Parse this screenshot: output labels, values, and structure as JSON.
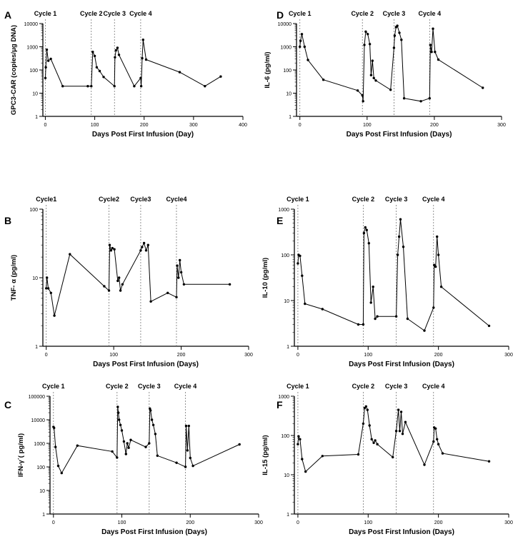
{
  "chart_data": [
    {
      "type": "line",
      "panel_letter": "A",
      "ylabel": "GPC3-CAR (copies/μg DNA)",
      "xlabel": "Days Post First Infusion (Day)",
      "yticks": [
        {
          "v": 1,
          "label": "1"
        },
        {
          "v": 10,
          "label": "10"
        },
        {
          "v": 100,
          "label": "100"
        },
        {
          "v": 1000,
          "label": "1000"
        },
        {
          "v": 10000,
          "label": "10000"
        }
      ],
      "xticks": [
        {
          "v": 0,
          "label": "0"
        },
        {
          "v": 100,
          "label": "100"
        },
        {
          "v": 200,
          "label": "200"
        },
        {
          "v": 300,
          "label": "300"
        },
        {
          "v": 400,
          "label": "400"
        }
      ],
      "ylim": [
        1,
        10000
      ],
      "xlim": [
        -5,
        400
      ],
      "cycles": [
        {
          "label": "Cycle 1",
          "day": 0
        },
        {
          "label": "Cycle 2",
          "day": 93
        },
        {
          "label": "Cycle 3",
          "day": 140
        },
        {
          "label": "Cycle 4",
          "day": 193
        }
      ],
      "x": [
        0,
        1,
        3,
        6,
        11,
        35,
        86,
        93,
        96,
        100,
        104,
        110,
        118,
        140,
        141,
        143,
        146,
        149,
        180,
        193,
        194,
        196,
        198,
        204,
        272,
        323,
        355
      ],
      "y": [
        45,
        130,
        750,
        250,
        300,
        20,
        20,
        20,
        600,
        400,
        130,
        90,
        50,
        20,
        350,
        700,
        900,
        450,
        20,
        45,
        20,
        320,
        2000,
        280,
        80,
        20,
        52
      ]
    },
    {
      "type": "line",
      "panel_letter": "B",
      "ylabel": "TNF- α (pg/ml)",
      "xlabel": "Days Post First Infusion (Days)",
      "yticks": [
        {
          "v": 1,
          "label": "1"
        },
        {
          "v": 10,
          "label": "10"
        },
        {
          "v": 100,
          "label": "100"
        }
      ],
      "xticks": [
        {
          "v": 0,
          "label": "0"
        },
        {
          "v": 100,
          "label": "100"
        },
        {
          "v": 200,
          "label": "200"
        },
        {
          "v": 300,
          "label": "300"
        }
      ],
      "ylim": [
        1,
        100
      ],
      "xlim": [
        -5,
        300
      ],
      "cycles": [
        {
          "label": "Cycle1",
          "day": 0
        },
        {
          "label": "Cycle2",
          "day": 93
        },
        {
          "label": "Cycle3",
          "day": 140
        },
        {
          "label": "Cycle4",
          "day": 193
        }
      ],
      "x": [
        0,
        1,
        3,
        7,
        12,
        35,
        86,
        93,
        94,
        96,
        98,
        101,
        106,
        108,
        110,
        113,
        140,
        142,
        145,
        148,
        151,
        155,
        180,
        193,
        194,
        196,
        198,
        200,
        204,
        272
      ],
      "y": [
        7,
        10,
        7,
        6,
        2.8,
        22,
        7.5,
        6.5,
        30,
        25,
        27,
        26,
        9,
        10,
        6.5,
        8,
        25,
        28,
        32,
        25,
        30,
        4.5,
        6,
        5.2,
        15,
        10,
        18,
        12,
        8,
        8
      ]
    },
    {
      "type": "line",
      "panel_letter": "C",
      "ylabel": "IFN-γ´( pg/ml)",
      "xlabel": "Days Post First Infusion (Days)",
      "yticks": [
        {
          "v": 1,
          "label": "1"
        },
        {
          "v": 10,
          "label": "10"
        },
        {
          "v": 100,
          "label": "100"
        },
        {
          "v": 1000,
          "label": "1000"
        },
        {
          "v": 10000,
          "label": "10000"
        },
        {
          "v": 100000,
          "label": "100000"
        }
      ],
      "xticks": [
        {
          "v": 0,
          "label": "0"
        },
        {
          "v": 100,
          "label": "100"
        },
        {
          "v": 200,
          "label": "200"
        },
        {
          "v": 300,
          "label": "300"
        }
      ],
      "ylim": [
        1,
        100000
      ],
      "xlim": [
        -5,
        300
      ],
      "cycles": [
        {
          "label": "Cycle 1",
          "day": 0
        },
        {
          "label": "Cycle 2",
          "day": 93
        },
        {
          "label": "Cycle 3",
          "day": 140
        },
        {
          "label": "Cycle 4",
          "day": 193
        }
      ],
      "x": [
        0,
        1,
        3,
        7,
        12,
        35,
        86,
        93,
        94,
        95,
        96,
        98,
        100,
        103,
        106,
        108,
        110,
        113,
        135,
        140,
        141,
        142,
        144,
        146,
        149,
        152,
        180,
        193,
        194,
        196,
        198,
        200,
        204,
        272
      ],
      "y": [
        5000,
        4500,
        700,
        110,
        55,
        800,
        450,
        250,
        35000,
        20000,
        10000,
        6000,
        3500,
        1200,
        350,
        1000,
        650,
        1400,
        700,
        1000,
        30000,
        25000,
        10000,
        6000,
        2500,
        300,
        150,
        100,
        5500,
        500,
        5500,
        240,
        110,
        900
      ]
    },
    {
      "type": "line",
      "panel_letter": "D",
      "ylabel": "IL-6 (pg/ml)",
      "xlabel": "Days Post First Infusion (Days)",
      "yticks": [
        {
          "v": 1,
          "label": "1"
        },
        {
          "v": 10,
          "label": "10"
        },
        {
          "v": 100,
          "label": "100"
        },
        {
          "v": 1000,
          "label": "1000"
        },
        {
          "v": 10000,
          "label": "10000"
        }
      ],
      "xticks": [
        {
          "v": 0,
          "label": "0"
        },
        {
          "v": 100,
          "label": "100"
        },
        {
          "v": 200,
          "label": "200"
        },
        {
          "v": 300,
          "label": "300"
        }
      ],
      "ylim": [
        1,
        10000
      ],
      "xlim": [
        -5,
        300
      ],
      "cycles": [
        {
          "label": "Cycle 1",
          "day": 0
        },
        {
          "label": "Cycle 2",
          "day": 93
        },
        {
          "label": "Cycle 3",
          "day": 140
        },
        {
          "label": "Cycle 4",
          "day": 193
        }
      ],
      "x": [
        0,
        1,
        3,
        7,
        12,
        35,
        86,
        93,
        94,
        96,
        98,
        101,
        104,
        106,
        108,
        110,
        113,
        135,
        140,
        141,
        143,
        145,
        148,
        151,
        155,
        180,
        193,
        194,
        196,
        198,
        201,
        206,
        272
      ],
      "y": [
        1000,
        1800,
        3500,
        1000,
        270,
        38,
        13,
        8,
        4.5,
        1200,
        4500,
        3500,
        1300,
        60,
        250,
        45,
        35,
        14,
        900,
        3000,
        7000,
        8000,
        4000,
        2000,
        6,
        4.5,
        6,
        1200,
        600,
        6000,
        600,
        280,
        17
      ]
    },
    {
      "type": "line",
      "panel_letter": "E",
      "ylabel": "IL-10 (pg/ml)",
      "xlabel": "Days Post First Infusion (Days)",
      "yticks": [
        {
          "v": 1,
          "label": "1"
        },
        {
          "v": 10,
          "label": "10"
        },
        {
          "v": 100,
          "label": "100"
        },
        {
          "v": 1000,
          "label": "1000"
        }
      ],
      "xticks": [
        {
          "v": 0,
          "label": "0"
        },
        {
          "v": 100,
          "label": "100"
        },
        {
          "v": 200,
          "label": "200"
        },
        {
          "v": 300,
          "label": "300"
        }
      ],
      "ylim": [
        1,
        1000
      ],
      "xlim": [
        -5,
        300
      ],
      "cycles": [
        {
          "label": "Cycle 1",
          "day": 0
        },
        {
          "label": "Cycle 2",
          "day": 93
        },
        {
          "label": "Cycle 3",
          "day": 140
        },
        {
          "label": "Cycle 4",
          "day": 193
        }
      ],
      "x": [
        0,
        1,
        3,
        6,
        10,
        35,
        86,
        93,
        94,
        96,
        98,
        101,
        104,
        107,
        110,
        113,
        140,
        142,
        144,
        146,
        150,
        156,
        180,
        193,
        194,
        196,
        198,
        200,
        204,
        272
      ],
      "y": [
        65,
        100,
        95,
        35,
        8.5,
        6.5,
        3,
        3,
        300,
        400,
        350,
        180,
        9,
        20,
        4,
        4.5,
        4.5,
        100,
        250,
        600,
        150,
        4,
        2.2,
        7,
        60,
        55,
        250,
        100,
        20,
        2.8
      ]
    },
    {
      "type": "line",
      "panel_letter": "F",
      "ylabel": "IL-15 (pg/ml)",
      "xlabel": "Days Post First Infusion (Days)",
      "yticks": [
        {
          "v": 1,
          "label": "1"
        },
        {
          "v": 10,
          "label": "10"
        },
        {
          "v": 100,
          "label": "100"
        },
        {
          "v": 1000,
          "label": "1000"
        }
      ],
      "xticks": [
        {
          "v": 0,
          "label": "0"
        },
        {
          "v": 100,
          "label": "100"
        },
        {
          "v": 200,
          "label": "200"
        },
        {
          "v": 300,
          "label": "300"
        }
      ],
      "ylim": [
        1,
        1000
      ],
      "xlim": [
        -5,
        300
      ],
      "cycles": [
        {
          "label": "Cycle 1",
          "day": 0
        },
        {
          "label": "Cycle 2",
          "day": 93
        },
        {
          "label": "Cycle 3",
          "day": 140
        },
        {
          "label": "Cycle 4",
          "day": 193
        }
      ],
      "x": [
        0,
        1,
        3,
        6,
        11,
        35,
        86,
        93,
        95,
        97,
        99,
        102,
        105,
        108,
        110,
        113,
        135,
        140,
        143,
        145,
        147,
        149,
        153,
        180,
        193,
        194,
        196,
        198,
        200,
        206,
        272
      ],
      "y": [
        60,
        95,
        80,
        25,
        12,
        30,
        33,
        200,
        500,
        550,
        450,
        180,
        80,
        65,
        75,
        60,
        28,
        130,
        450,
        130,
        400,
        110,
        220,
        18,
        70,
        160,
        150,
        80,
        60,
        35,
        22
      ]
    }
  ]
}
